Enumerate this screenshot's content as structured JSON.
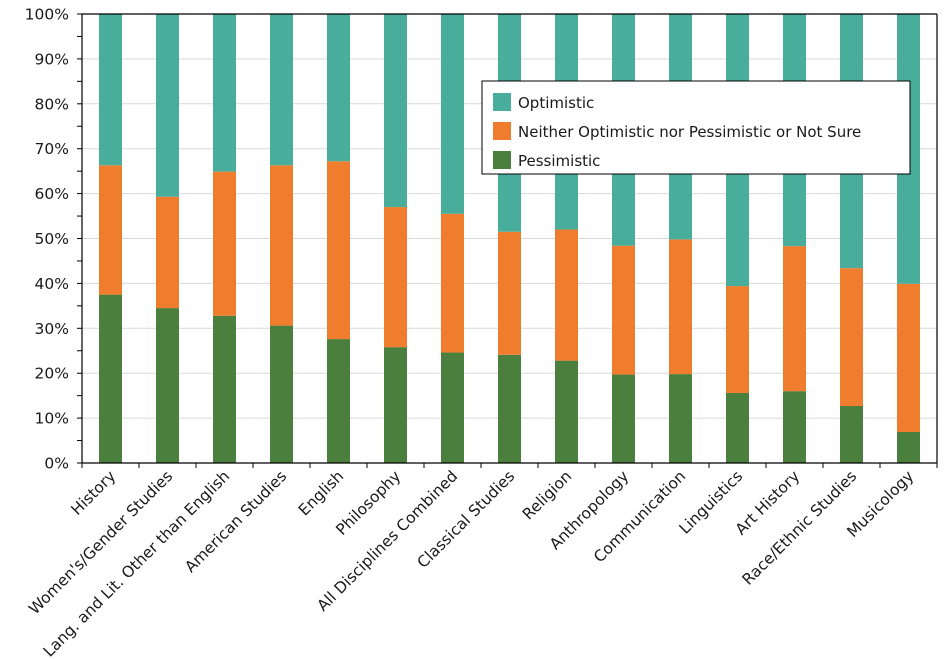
{
  "chart_data": {
    "type": "bar",
    "stacked": true,
    "orientation": "vertical",
    "title": "",
    "xlabel": "",
    "ylabel": "",
    "ylim": [
      0,
      100
    ],
    "y_ticks": [
      "0%",
      "10%",
      "20%",
      "30%",
      "40%",
      "50%",
      "60%",
      "70%",
      "80%",
      "90%",
      "100%"
    ],
    "y_tick_values": [
      0,
      10,
      20,
      30,
      40,
      50,
      60,
      70,
      80,
      90,
      100
    ],
    "grid": "horizontal",
    "legend_position": "top-right",
    "categories": [
      "History",
      "Women's/Gender Studies",
      "Lang. and Lit. Other than English",
      "American Studies",
      "English",
      "Philosophy",
      "All Disciplines Combined",
      "Classical Studies",
      "Religion",
      "Anthropology",
      "Communication",
      "Linguistics",
      "Art History",
      "Race/Ethnic Studies",
      "Musicology"
    ],
    "series": [
      {
        "name": "Pessimistic",
        "color": "#4a7f3e",
        "values": [
          37.5,
          34.5,
          32.8,
          30.6,
          27.6,
          25.8,
          24.6,
          24.1,
          22.8,
          19.7,
          19.8,
          15.6,
          16.0,
          12.7,
          6.9
        ]
      },
      {
        "name": "Neither Optimistic nor Pessimistic or Not Sure",
        "color": "#f07c2d",
        "values": [
          28.8,
          24.8,
          32.1,
          35.7,
          39.6,
          31.2,
          30.9,
          27.4,
          29.2,
          28.7,
          30.0,
          23.8,
          32.3,
          30.7,
          33.0
        ]
      },
      {
        "name": "Optimistic",
        "color": "#48ad9b",
        "values": [
          33.7,
          40.7,
          35.1,
          33.7,
          32.8,
          43.0,
          44.5,
          48.5,
          48.0,
          51.6,
          50.2,
          60.6,
          51.7,
          56.6,
          60.1
        ]
      }
    ],
    "legend": [
      {
        "name": "Optimistic",
        "color": "#48ad9b"
      },
      {
        "name": "Neither Optimistic nor Pessimistic or Not Sure",
        "color": "#f07c2d"
      },
      {
        "name": "Pessimistic",
        "color": "#4a7f3e"
      }
    ]
  }
}
